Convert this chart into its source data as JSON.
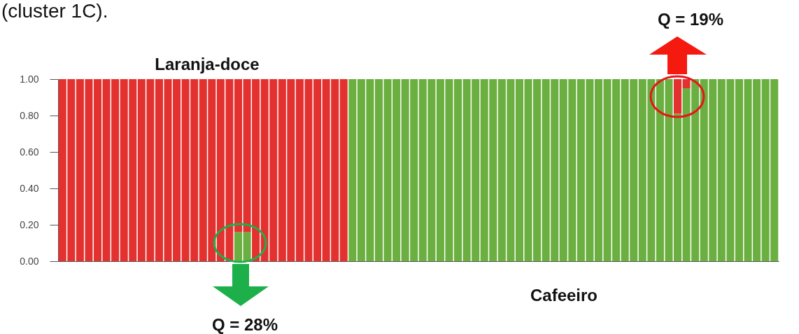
{
  "chart_data": {
    "type": "bar",
    "stacked": true,
    "categories": [
      null,
      null,
      null,
      null,
      null,
      null,
      null,
      null,
      null,
      null,
      null,
      null,
      null,
      null,
      null,
      null,
      null,
      null,
      null,
      null,
      null,
      null,
      null,
      null,
      null,
      null,
      null,
      null,
      null,
      null,
      null,
      null,
      null,
      null,
      null,
      null,
      null,
      null,
      null,
      null,
      null,
      null,
      null,
      null,
      null,
      null,
      null,
      null,
      null,
      null,
      null,
      null,
      null,
      null,
      null,
      null,
      null,
      null,
      null,
      null,
      null,
      null,
      null,
      null,
      null,
      null,
      null,
      null,
      null,
      null,
      null,
      null,
      null,
      null,
      null,
      null,
      null,
      null,
      null,
      null,
      null,
      null
    ],
    "series": [
      {
        "color": "#6aaf3f",
        "values": [
          0,
          0,
          0,
          0,
          0,
          0,
          0,
          0,
          0,
          0,
          0,
          0,
          0,
          0,
          0,
          0,
          0,
          0,
          0,
          0,
          0.16,
          0.16,
          0,
          0,
          0,
          0,
          0,
          0,
          0,
          0,
          0,
          0,
          0,
          1,
          1,
          1,
          1,
          1,
          1,
          1,
          1,
          1,
          1,
          1,
          1,
          1,
          1,
          1,
          1,
          1,
          1,
          1,
          1,
          1,
          1,
          1,
          1,
          1,
          1,
          1,
          1,
          1,
          1,
          1,
          1,
          1,
          1,
          1,
          1,
          1,
          0.81,
          0.95,
          1,
          1,
          1,
          1,
          1,
          1,
          1,
          1,
          1,
          1
        ]
      },
      {
        "color": "#e3312f",
        "values": [
          1,
          1,
          1,
          1,
          1,
          1,
          1,
          1,
          1,
          1,
          1,
          1,
          1,
          1,
          1,
          1,
          1,
          1,
          1,
          1,
          0.84,
          0.84,
          1,
          1,
          1,
          1,
          1,
          1,
          1,
          1,
          1,
          1,
          1,
          0,
          0,
          0,
          0,
          0,
          0,
          0,
          0,
          0,
          0,
          0,
          0,
          0,
          0,
          0,
          0,
          0,
          0,
          0,
          0,
          0,
          0,
          0,
          0,
          0,
          0,
          0,
          0,
          0,
          0,
          0,
          0,
          0,
          0,
          0,
          0,
          0,
          0.19,
          0.05,
          0,
          0,
          0,
          0,
          0,
          0,
          0,
          0,
          0,
          0
        ]
      }
    ],
    "ylim": [
      0,
      1
    ],
    "yticks": [
      {
        "value": 0,
        "label": "0.00"
      },
      {
        "value": 0.2,
        "label": "0.20"
      },
      {
        "value": 0.4,
        "label": "0.40"
      },
      {
        "value": 0.6,
        "label": "0.60"
      },
      {
        "value": 0.8,
        "label": "0.80"
      },
      {
        "value": 1,
        "label": "1.00"
      }
    ],
    "grid": false,
    "annotations": [
      "(cluster 1C).",
      "Laranja-doce",
      "Cafeeiro",
      "Q = 28%",
      "Q = 19%"
    ]
  }
}
